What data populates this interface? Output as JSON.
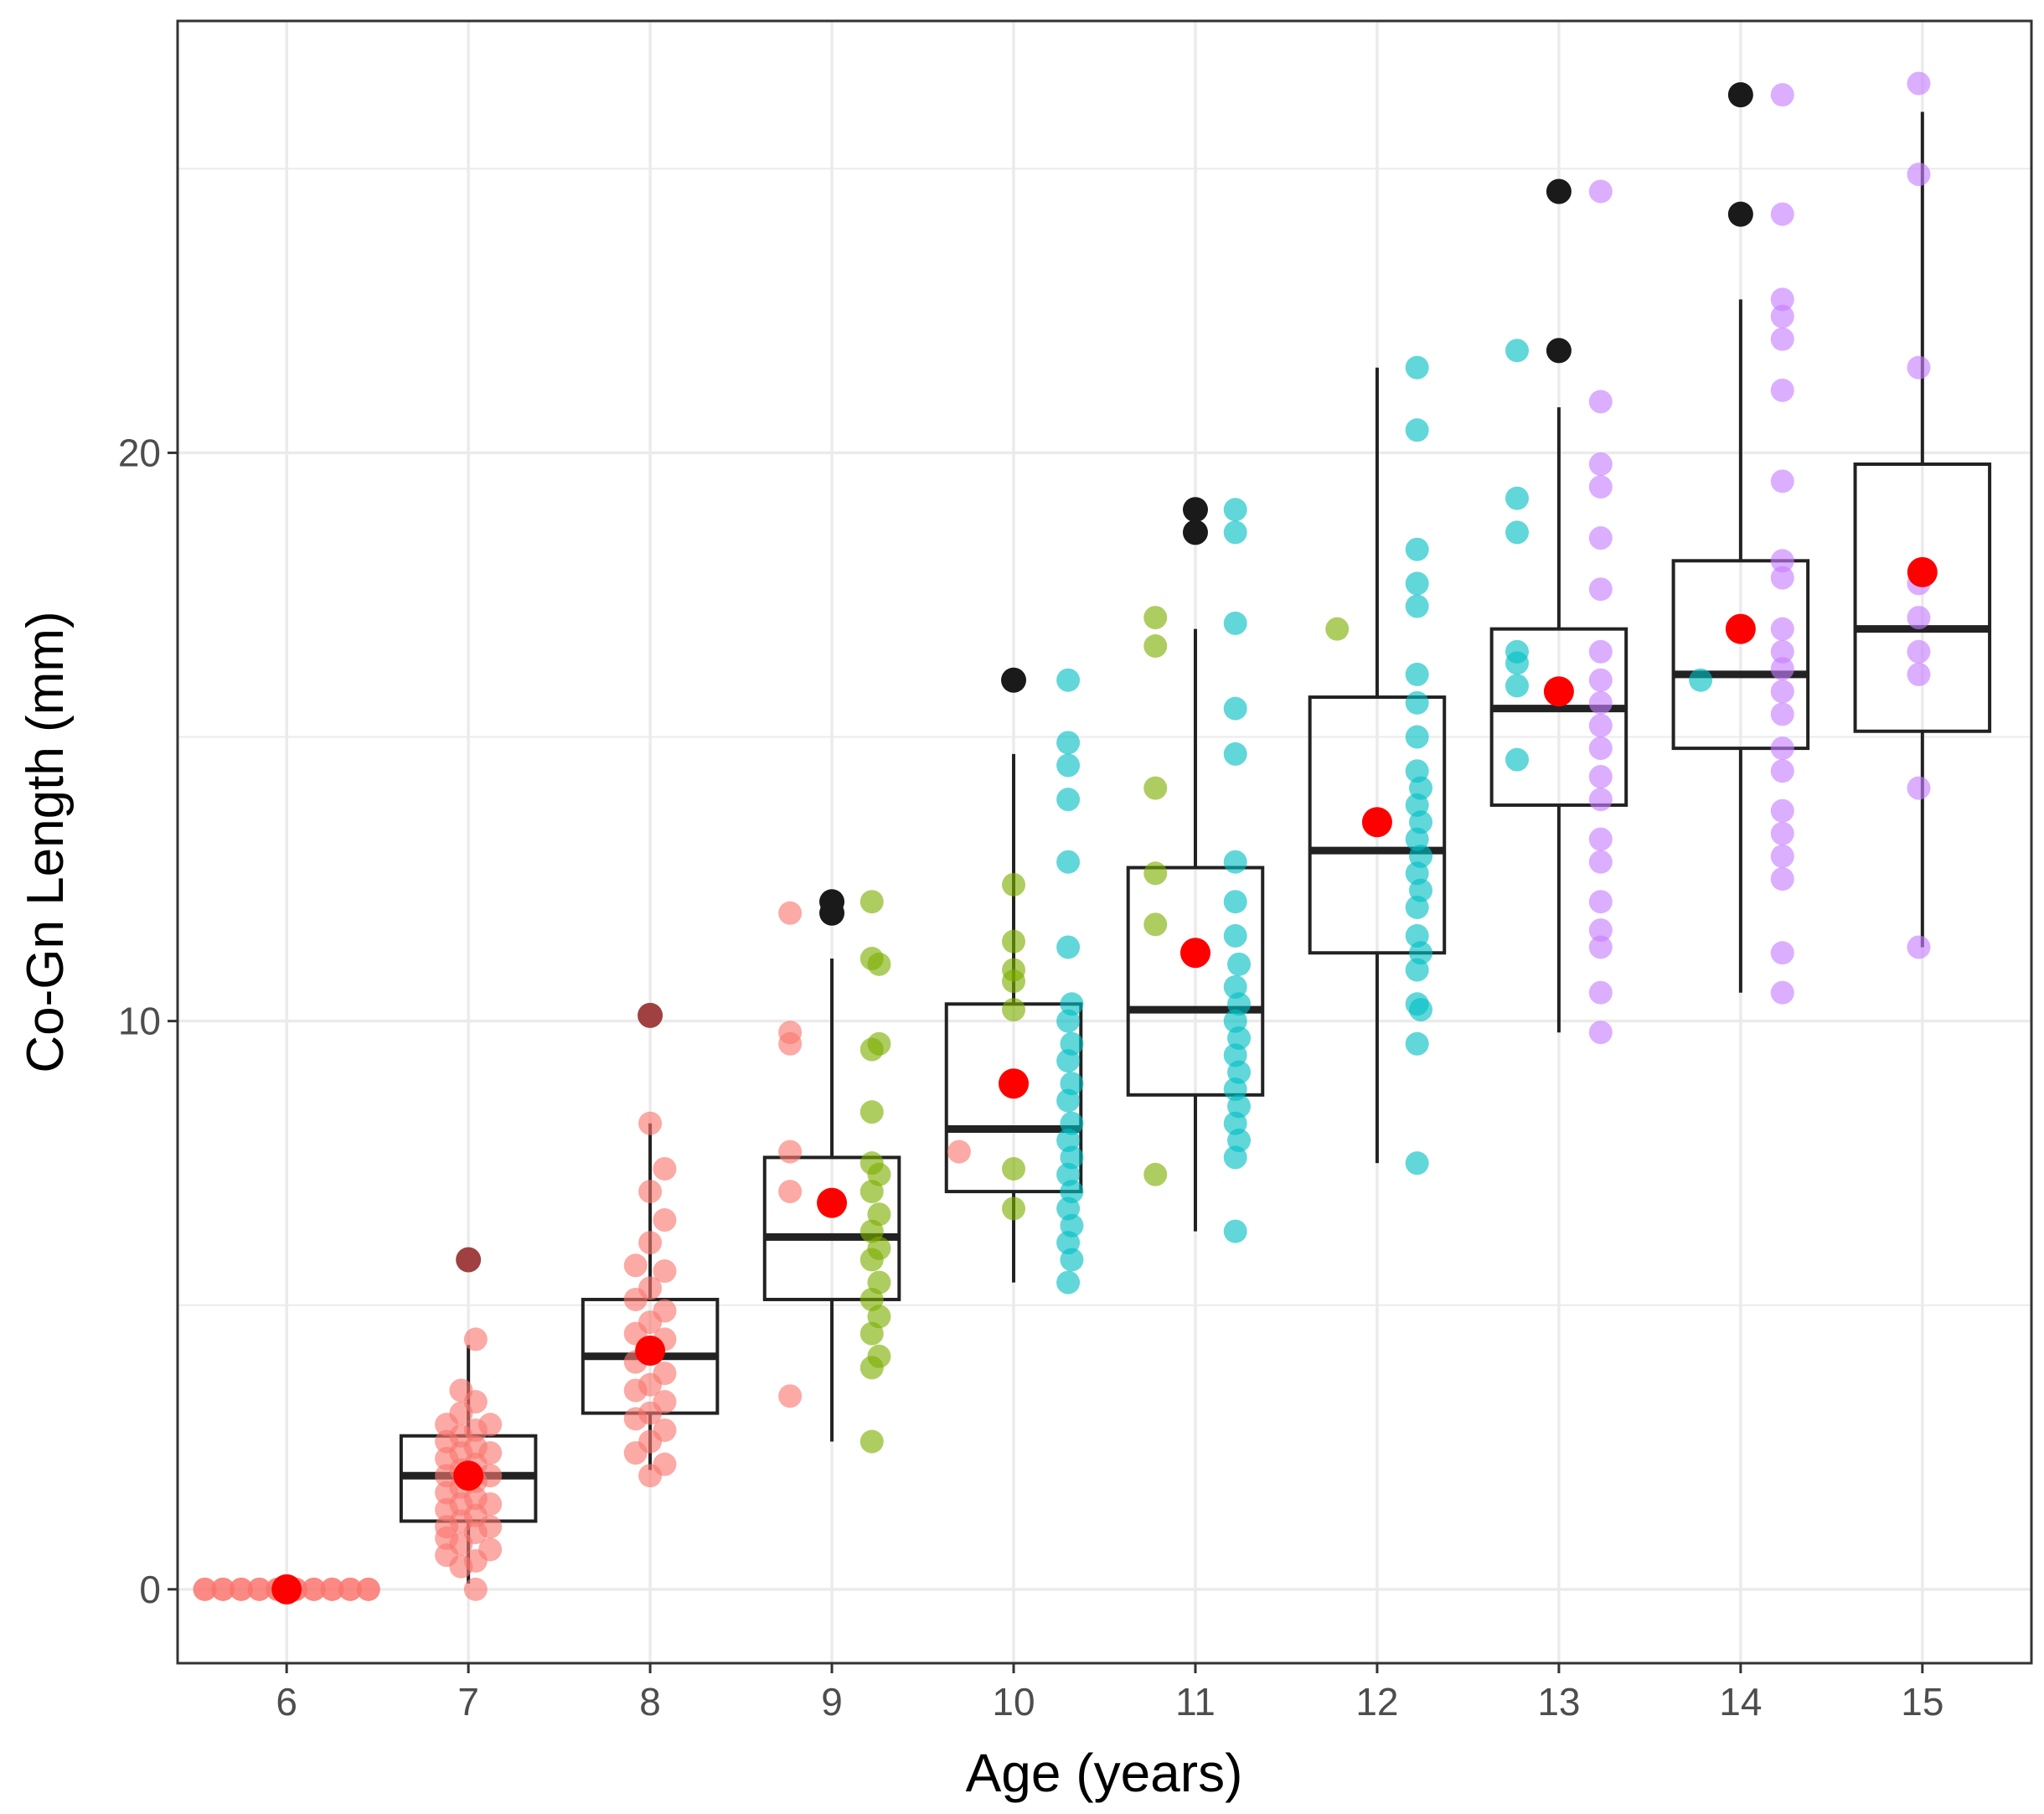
{
  "chart_data": {
    "type": "boxplot",
    "title": "",
    "xlabel": "Age (years)",
    "ylabel": "Co-Gn Length (mm)",
    "xlim": [
      5.4,
      15.6
    ],
    "ylim": [
      -1.3,
      27.6
    ],
    "x_ticks": [
      6,
      7,
      8,
      9,
      10,
      11,
      12,
      13,
      14,
      15
    ],
    "y_ticks": [
      0,
      10,
      20
    ],
    "y_minor_ticks": [
      5,
      15,
      25
    ],
    "grid": true,
    "legend": "none",
    "colors": {
      "panel_border": "#333333",
      "grid": "#ebebeb",
      "box": "#222222",
      "mean": "#ff0000",
      "outlier": "#1a1a1a",
      "group_red": "#f8766d",
      "group_green": "#7cae00",
      "group_cyan": "#00bfc4",
      "group_purple": "#c77cff"
    },
    "boxes": [
      {
        "age": 6,
        "q1": 0.0,
        "median": 0.0,
        "q3": 0.0,
        "whisker_low": 0.0,
        "whisker_high": 0.0,
        "mean": 0.0,
        "outliers": []
      },
      {
        "age": 7,
        "q1": 1.2,
        "median": 2.0,
        "q3": 2.7,
        "whisker_low": 0.1,
        "whisker_high": 4.3,
        "mean": 2.0,
        "outliers": [
          5.8
        ],
        "outlier_color": "#a04040"
      },
      {
        "age": 8,
        "q1": 3.1,
        "median": 4.1,
        "q3": 5.1,
        "whisker_low": 2.1,
        "whisker_high": 8.2,
        "mean": 4.2,
        "outliers": [
          10.1
        ],
        "outlier_color": "#a04040"
      },
      {
        "age": 9,
        "q1": 5.1,
        "median": 6.2,
        "q3": 7.6,
        "whisker_low": 2.6,
        "whisker_high": 11.1,
        "mean": 6.8,
        "outliers": [
          11.9,
          12.1
        ]
      },
      {
        "age": 10,
        "q1": 7.0,
        "median": 8.1,
        "q3": 10.3,
        "whisker_low": 5.4,
        "whisker_high": 14.7,
        "mean": 8.9,
        "outliers": [
          16.0
        ]
      },
      {
        "age": 11,
        "q1": 8.7,
        "median": 10.2,
        "q3": 12.7,
        "whisker_low": 6.3,
        "whisker_high": 16.9,
        "mean": 11.2,
        "outliers": [
          18.6,
          19.0
        ]
      },
      {
        "age": 12,
        "q1": 11.2,
        "median": 13.0,
        "q3": 15.7,
        "whisker_low": 7.5,
        "whisker_high": 21.5,
        "mean": 13.5,
        "outliers": []
      },
      {
        "age": 13,
        "q1": 13.8,
        "median": 15.5,
        "q3": 16.9,
        "whisker_low": 9.8,
        "whisker_high": 20.8,
        "mean": 15.8,
        "outliers": [
          21.8,
          24.6
        ]
      },
      {
        "age": 14,
        "q1": 14.8,
        "median": 16.1,
        "q3": 18.1,
        "whisker_low": 10.5,
        "whisker_high": 22.7,
        "mean": 16.9,
        "outliers": [
          24.2,
          26.3
        ]
      },
      {
        "age": 15,
        "q1": 15.1,
        "median": 16.9,
        "q3": 19.8,
        "whisker_low": 11.3,
        "whisker_high": 26.0,
        "mean": 17.9,
        "outliers": []
      }
    ],
    "jitter_points": [
      {
        "age": 6,
        "offset": -0.45,
        "values": [
          0,
          0
        ],
        "color": "#f8766d"
      },
      {
        "age": 6,
        "offset": -0.35,
        "values": [
          0,
          0
        ],
        "color": "#f8766d"
      },
      {
        "age": 6,
        "offset": -0.25,
        "values": [
          0,
          0
        ],
        "color": "#f8766d"
      },
      {
        "age": 6,
        "offset": -0.15,
        "values": [
          0,
          0
        ],
        "color": "#f8766d"
      },
      {
        "age": 6,
        "offset": -0.05,
        "values": [
          0,
          0
        ],
        "color": "#f8766d"
      },
      {
        "age": 6,
        "offset": 0.05,
        "values": [
          0,
          0
        ],
        "color": "#f8766d"
      },
      {
        "age": 6,
        "offset": 0.15,
        "values": [
          0,
          0
        ],
        "color": "#f8766d"
      },
      {
        "age": 6,
        "offset": 0.25,
        "values": [
          0,
          0
        ],
        "color": "#f8766d"
      },
      {
        "age": 6,
        "offset": 0.35,
        "values": [
          0,
          0
        ],
        "color": "#f8766d"
      },
      {
        "age": 6,
        "offset": 0.45,
        "values": [
          0,
          0
        ],
        "color": "#f8766d"
      },
      {
        "age": 7,
        "offset": -0.12,
        "values": [
          0.6,
          0.9,
          1.1,
          1.4,
          1.7,
          2.0,
          2.3,
          2.6,
          2.9
        ],
        "color": "#f8766d"
      },
      {
        "age": 7,
        "offset": -0.04,
        "values": [
          0.4,
          0.8,
          1.2,
          1.5,
          1.8,
          2.1,
          2.4,
          2.7,
          3.1,
          3.5
        ],
        "color": "#f8766d"
      },
      {
        "age": 7,
        "offset": 0.04,
        "values": [
          0.0,
          0.5,
          1.0,
          1.3,
          1.6,
          1.9,
          2.2,
          2.5,
          2.8,
          3.3,
          4.4
        ],
        "color": "#f8766d"
      },
      {
        "age": 7,
        "offset": 0.12,
        "values": [
          0.7,
          1.1,
          1.5,
          2.0,
          2.4,
          2.9
        ],
        "color": "#f8766d"
      },
      {
        "age": 8,
        "offset": -0.08,
        "values": [
          2.4,
          3.0,
          3.5,
          4.0,
          4.5,
          5.1,
          5.7
        ],
        "color": "#f8766d"
      },
      {
        "age": 8,
        "offset": 0.0,
        "values": [
          2.0,
          2.6,
          3.1,
          3.6,
          4.2,
          4.7,
          5.3,
          6.1,
          7.0,
          8.2
        ],
        "color": "#f8766d"
      },
      {
        "age": 8,
        "offset": 0.08,
        "values": [
          2.2,
          2.8,
          3.3,
          3.8,
          4.4,
          4.9,
          5.6,
          6.5,
          7.4
        ],
        "color": "#f8766d"
      },
      {
        "age": 9,
        "offset": -0.23,
        "values": [
          3.4,
          7.0,
          7.7,
          9.6,
          9.8,
          11.9
        ],
        "color": "#f8766d"
      },
      {
        "age": 9,
        "offset": 0.22,
        "values": [
          2.6,
          3.9,
          4.5,
          5.1,
          5.8,
          6.3,
          7.0,
          7.5,
          8.4,
          9.5,
          11.1,
          12.1
        ],
        "color": "#7cae00"
      },
      {
        "age": 9,
        "offset": 0.26,
        "values": [
          4.1,
          4.8,
          5.4,
          6.0,
          6.6,
          7.3,
          9.6,
          11.0
        ],
        "color": "#7cae00"
      },
      {
        "age": 10,
        "offset": -0.3,
        "values": [
          7.7
        ],
        "color": "#f8766d"
      },
      {
        "age": 10,
        "offset": 0.0,
        "values": [
          6.7,
          7.4,
          10.2,
          10.7,
          10.9,
          11.4,
          12.4
        ],
        "color": "#7cae00"
      },
      {
        "age": 10,
        "offset": 0.3,
        "values": [
          5.4,
          6.1,
          6.7,
          7.3,
          7.9,
          8.6,
          9.3,
          10.0,
          11.3,
          12.8,
          13.9,
          14.5,
          14.9,
          16.0
        ],
        "color": "#00bfc4"
      },
      {
        "age": 10,
        "offset": 0.32,
        "values": [
          5.8,
          6.4,
          7.0,
          7.6,
          8.2,
          8.9,
          9.6,
          10.3
        ],
        "color": "#00bfc4"
      },
      {
        "age": 11,
        "offset": -0.22,
        "values": [
          7.3,
          11.7,
          12.6,
          14.1,
          16.6,
          17.1
        ],
        "color": "#7cae00"
      },
      {
        "age": 11,
        "offset": 0.22,
        "values": [
          6.3,
          7.6,
          8.2,
          8.8,
          9.4,
          10.0,
          10.6,
          11.5,
          12.1,
          12.8,
          14.7,
          15.5,
          17.0,
          18.6,
          19.0
        ],
        "color": "#00bfc4"
      },
      {
        "age": 11,
        "offset": 0.24,
        "values": [
          7.9,
          8.5,
          9.1,
          9.7,
          10.3,
          11.0
        ],
        "color": "#00bfc4"
      },
      {
        "age": 12,
        "offset": -0.22,
        "values": [
          16.9
        ],
        "color": "#7cae00"
      },
      {
        "age": 12,
        "offset": 0.22,
        "values": [
          7.5,
          9.6,
          10.3,
          10.9,
          11.5,
          12.0,
          12.6,
          13.2,
          13.8,
          14.4,
          15.0,
          15.6,
          16.1,
          17.3,
          17.7,
          18.3,
          20.4,
          21.5
        ],
        "color": "#00bfc4"
      },
      {
        "age": 12,
        "offset": 0.24,
        "values": [
          10.2,
          11.2,
          12.3,
          12.9,
          13.5,
          14.1
        ],
        "color": "#00bfc4"
      },
      {
        "age": 13,
        "offset": -0.23,
        "values": [
          14.6,
          15.9,
          16.3,
          16.5,
          18.6,
          19.2,
          21.8
        ],
        "color": "#00bfc4"
      },
      {
        "age": 13,
        "offset": 0.23,
        "values": [
          9.8,
          10.5,
          11.3,
          11.6,
          12.1,
          12.8,
          13.2,
          13.9,
          14.3,
          14.8,
          15.2,
          15.6,
          16.0,
          16.5,
          17.6,
          18.5,
          19.4,
          19.8,
          20.9,
          24.6
        ],
        "color": "#c77cff"
      },
      {
        "age": 14,
        "offset": -0.22,
        "values": [
          16.0
        ],
        "color": "#00bfc4"
      },
      {
        "age": 14,
        "offset": 0.23,
        "values": [
          10.5,
          11.2,
          12.5,
          12.9,
          13.3,
          13.7,
          14.4,
          14.8,
          15.4,
          15.8,
          16.2,
          16.5,
          16.9,
          17.8,
          18.1,
          19.5,
          21.1,
          22.0,
          22.4,
          22.7,
          24.2,
          26.3
        ],
        "color": "#c77cff"
      },
      {
        "age": 15,
        "offset": -0.02,
        "values": [
          11.3,
          14.1,
          16.1,
          16.5,
          17.1,
          17.7,
          21.5,
          24.9,
          26.5
        ],
        "color": "#c77cff"
      }
    ]
  }
}
